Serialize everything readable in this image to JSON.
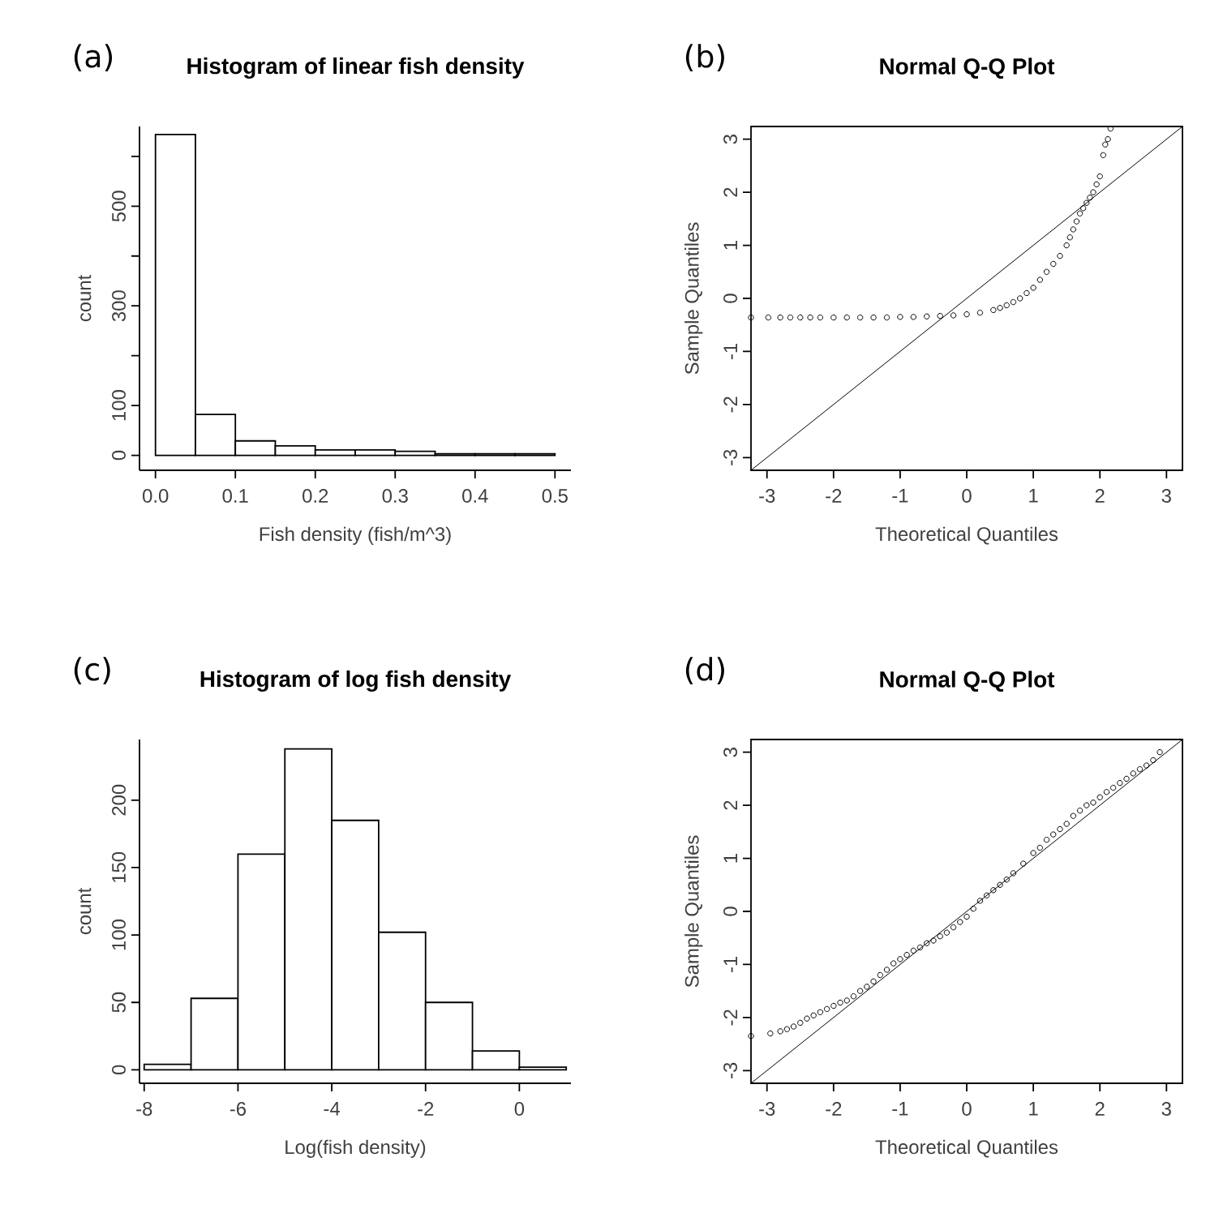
{
  "chart_data": [
    {
      "type": "histogram",
      "title": "Histogram of linear fish density",
      "annotations": [
        "(a)"
      ],
      "xlabel": "Fish density (fish/m^3)",
      "ylabel": "count",
      "color": "#ffffff",
      "bins": [
        0,
        0.05,
        0.1,
        0.15,
        0.2,
        0.25,
        0.3,
        0.35,
        0.4,
        0.45,
        0.5
      ],
      "values": [
        644,
        82,
        29,
        19,
        11,
        11,
        8,
        3,
        3,
        3
      ],
      "xlim": [
        -0.02,
        0.52
      ],
      "ylim": [
        -30,
        660
      ],
      "xticks": [
        {
          "value": 0,
          "label": "0.0"
        },
        0.1,
        0.2,
        0.3,
        0.4,
        0.5
      ],
      "yticks": [
        0,
        100,
        {
          "value": 200,
          "label": null
        },
        300,
        {
          "value": 400,
          "label": null
        },
        500,
        {
          "value": 600,
          "label": null
        }
      ]
    },
    {
      "type": "scatter",
      "title": "Normal Q-Q Plot",
      "annotations": [
        "(b)"
      ],
      "xlabel": "Theoretical Quantiles",
      "ylabel": "Sample Quantiles",
      "xlim": [
        -3.24,
        3.24
      ],
      "ylim": [
        -3.24,
        3.24
      ],
      "xticks": [
        -3,
        -2,
        -1,
        0,
        1,
        2,
        3
      ],
      "yticks": [
        -3,
        -2,
        -1,
        0,
        1,
        2,
        3
      ],
      "series": [
        {
          "type": "scatter",
          "marker": "circle",
          "color": "#000000",
          "x": [
            -3.24,
            -2.98,
            -2.8,
            -2.65,
            -2.5,
            -2.35,
            -2.2,
            -2.0,
            -1.8,
            -1.6,
            -1.4,
            -1.2,
            -1.0,
            -0.8,
            -0.6,
            -0.4,
            -0.2,
            0.0,
            0.2,
            0.4,
            0.5,
            0.6,
            0.7,
            0.8,
            0.9,
            1.0,
            1.1,
            1.2,
            1.3,
            1.4,
            1.5,
            1.55,
            1.6,
            1.65,
            1.7,
            1.75,
            1.8,
            1.85,
            1.9,
            1.95,
            2.0,
            2.05,
            2.08,
            2.12,
            2.16
          ],
          "values": [
            -0.36,
            -0.36,
            -0.36,
            -0.36,
            -0.36,
            -0.36,
            -0.36,
            -0.36,
            -0.36,
            -0.36,
            -0.36,
            -0.36,
            -0.35,
            -0.35,
            -0.34,
            -0.33,
            -0.32,
            -0.3,
            -0.27,
            -0.22,
            -0.18,
            -0.13,
            -0.07,
            0.0,
            0.1,
            0.2,
            0.35,
            0.5,
            0.65,
            0.8,
            1.0,
            1.15,
            1.3,
            1.45,
            1.6,
            1.7,
            1.8,
            1.9,
            2.0,
            2.15,
            2.3,
            2.7,
            2.9,
            3.0,
            3.2
          ]
        },
        {
          "type": "line",
          "color": "#000000",
          "x": [
            -3.24,
            3.24
          ],
          "values": [
            -3.24,
            3.24
          ]
        }
      ]
    },
    {
      "type": "histogram",
      "title": "Histogram of log fish density",
      "annotations": [
        "(c)"
      ],
      "xlabel": "Log(fish density)",
      "ylabel": "count",
      "color": "#ffffff",
      "bins": [
        -8,
        -7,
        -6,
        -5,
        -4,
        -3,
        -2,
        -1,
        0,
        1
      ],
      "values": [
        4,
        53,
        160,
        238,
        185,
        102,
        50,
        14,
        2
      ],
      "xlim": [
        -8.1,
        1.1
      ],
      "ylim": [
        -10,
        245
      ],
      "xticks": [
        -8,
        -6,
        -4,
        -2,
        0
      ],
      "yticks": [
        0,
        50,
        100,
        150,
        200
      ]
    },
    {
      "type": "scatter",
      "title": "Normal Q-Q Plot",
      "annotations": [
        "(d)"
      ],
      "xlabel": "Theoretical Quantiles",
      "ylabel": "Sample Quantiles",
      "xlim": [
        -3.24,
        3.24
      ],
      "ylim": [
        -3.24,
        3.24
      ],
      "xticks": [
        -3,
        -2,
        -1,
        0,
        1,
        2,
        3
      ],
      "yticks": [
        -3,
        -2,
        -1,
        0,
        1,
        2,
        3
      ],
      "series": [
        {
          "type": "scatter",
          "marker": "circle",
          "color": "#000000",
          "x": [
            -3.24,
            -2.95,
            -2.8,
            -2.7,
            -2.6,
            -2.5,
            -2.4,
            -2.3,
            -2.2,
            -2.1,
            -2.0,
            -1.9,
            -1.8,
            -1.7,
            -1.6,
            -1.5,
            -1.4,
            -1.3,
            -1.2,
            -1.1,
            -1.0,
            -0.9,
            -0.8,
            -0.7,
            -0.6,
            -0.5,
            -0.4,
            -0.3,
            -0.2,
            -0.1,
            0.0,
            0.1,
            0.2,
            0.3,
            0.4,
            0.5,
            0.6,
            0.7,
            0.85,
            1.0,
            1.1,
            1.2,
            1.3,
            1.4,
            1.5,
            1.6,
            1.7,
            1.8,
            1.9,
            2.0,
            2.1,
            2.2,
            2.3,
            2.4,
            2.5,
            2.6,
            2.7,
            2.8,
            2.9
          ],
          "values": [
            -2.35,
            -2.3,
            -2.26,
            -2.22,
            -2.17,
            -2.1,
            -2.02,
            -1.96,
            -1.9,
            -1.84,
            -1.78,
            -1.72,
            -1.68,
            -1.6,
            -1.5,
            -1.42,
            -1.32,
            -1.2,
            -1.1,
            -0.98,
            -0.9,
            -0.82,
            -0.74,
            -0.68,
            -0.6,
            -0.55,
            -0.47,
            -0.4,
            -0.3,
            -0.2,
            -0.1,
            0.05,
            0.2,
            0.3,
            0.4,
            0.5,
            0.6,
            0.72,
            0.9,
            1.1,
            1.2,
            1.35,
            1.45,
            1.55,
            1.65,
            1.8,
            1.9,
            2.0,
            2.05,
            2.15,
            2.25,
            2.33,
            2.42,
            2.5,
            2.6,
            2.68,
            2.75,
            2.85,
            3.0
          ]
        },
        {
          "type": "line",
          "color": "#000000",
          "x": [
            -3.24,
            3.24
          ],
          "values": [
            -3.24,
            3.24
          ]
        }
      ]
    }
  ]
}
